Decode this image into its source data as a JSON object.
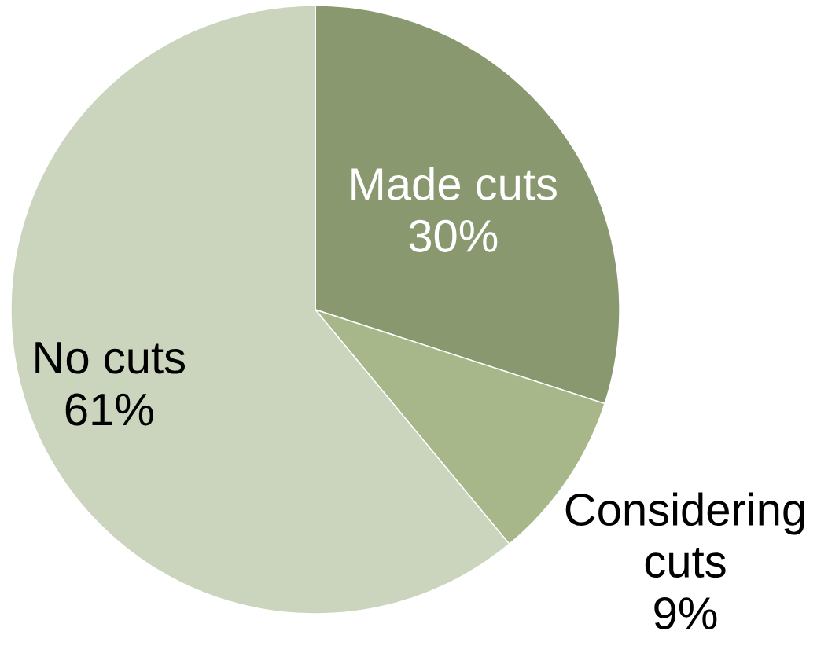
{
  "chart_data": {
    "type": "pie",
    "categories": [
      "Made cuts",
      "Considering cuts",
      "No cuts"
    ],
    "values": [
      30,
      9,
      61
    ],
    "colors": [
      "#8a9870",
      "#a8b78a",
      "#cbd4bc"
    ],
    "value_labels": [
      "30%",
      "9%",
      "61%"
    ]
  }
}
